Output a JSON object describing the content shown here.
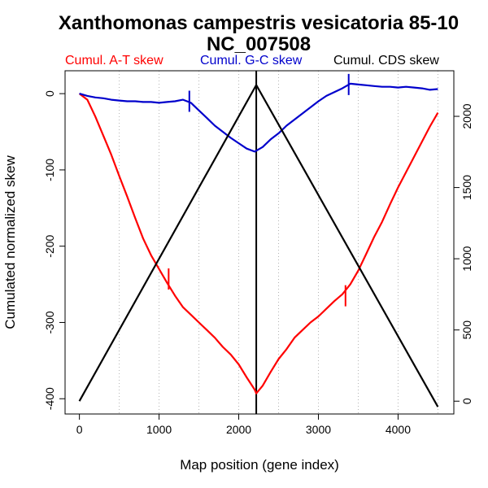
{
  "chart_data": {
    "type": "line",
    "title": "Xanthomonas campestris vesicatoria 85-10",
    "subtitle": "NC_007508",
    "xlabel": "Map position (gene index)",
    "ylabel": "Cumulated normalized skew",
    "xlim": [
      -180,
      4700
    ],
    "ylim": [
      -420,
      30
    ],
    "y2lim": [
      -90,
      2320
    ],
    "xticks": [
      0,
      1000,
      2000,
      3000,
      4000
    ],
    "yticks": [
      0,
      -100,
      -200,
      -300,
      -400
    ],
    "y2ticks": [
      0,
      500,
      1000,
      1500,
      2000
    ],
    "gridlines_x": [
      500,
      1000,
      1500,
      2000,
      2500,
      3000,
      3500,
      4000,
      4500
    ],
    "legend": [
      "Cumul. A-T skew",
      "Cumul. G-C skew",
      "Cumul. CDS skew"
    ],
    "origin_line_x": 2220,
    "series": [
      {
        "name": "Cumul. A-T skew",
        "color": "#ff0000",
        "axis": "left",
        "x": [
          0,
          100,
          200,
          300,
          400,
          500,
          600,
          700,
          800,
          900,
          1000,
          1100,
          1200,
          1300,
          1400,
          1500,
          1600,
          1700,
          1800,
          1900,
          2000,
          2100,
          2200,
          2220,
          2300,
          2400,
          2500,
          2600,
          2700,
          2800,
          2900,
          3000,
          3100,
          3200,
          3300,
          3400,
          3500,
          3600,
          3700,
          3800,
          3900,
          4000,
          4100,
          4200,
          4300,
          4400,
          4500
        ],
        "y": [
          0,
          -8,
          -30,
          -55,
          -80,
          -108,
          -135,
          -163,
          -190,
          -212,
          -230,
          -248,
          -265,
          -280,
          -290,
          -300,
          -310,
          -320,
          -332,
          -342,
          -355,
          -372,
          -388,
          -393,
          -383,
          -365,
          -348,
          -335,
          -320,
          -310,
          -300,
          -292,
          -282,
          -272,
          -263,
          -250,
          -232,
          -210,
          -188,
          -168,
          -145,
          -123,
          -103,
          -83,
          -63,
          -43,
          -25
        ]
      },
      {
        "name": "Cumul. G-C skew",
        "color": "#0000cc",
        "axis": "left",
        "x": [
          0,
          100,
          200,
          300,
          400,
          500,
          600,
          700,
          800,
          900,
          1000,
          1100,
          1200,
          1300,
          1400,
          1500,
          1600,
          1700,
          1800,
          1900,
          2000,
          2100,
          2200,
          2300,
          2400,
          2500,
          2600,
          2700,
          2800,
          2900,
          3000,
          3100,
          3200,
          3300,
          3400,
          3500,
          3600,
          3700,
          3800,
          3900,
          4000,
          4100,
          4200,
          4300,
          4400,
          4500
        ],
        "y": [
          0,
          -3,
          -5,
          -6,
          -8,
          -9,
          -10,
          -10,
          -11,
          -11,
          -12,
          -11,
          -10,
          -8,
          -12,
          -22,
          -32,
          -42,
          -50,
          -58,
          -65,
          -72,
          -76,
          -70,
          -60,
          -52,
          -42,
          -34,
          -26,
          -18,
          -10,
          -3,
          2,
          7,
          13,
          12,
          11,
          10,
          9,
          9,
          8,
          9,
          8,
          7,
          5,
          6
        ]
      },
      {
        "name": "Cumul. CDS skew",
        "color": "#000000",
        "axis": "right",
        "x": [
          0,
          2220,
          4500
        ],
        "y": [
          0,
          2220,
          -40
        ]
      }
    ],
    "markers": [
      {
        "series": "Cumul. A-T skew",
        "x": 1120,
        "y": -243
      },
      {
        "series": "Cumul. A-T skew",
        "x": 3340,
        "y": -265
      },
      {
        "series": "Cumul. G-C skew",
        "x": 1380,
        "y": -10
      },
      {
        "series": "Cumul. G-C skew",
        "x": 3380,
        "y": 12
      }
    ]
  }
}
